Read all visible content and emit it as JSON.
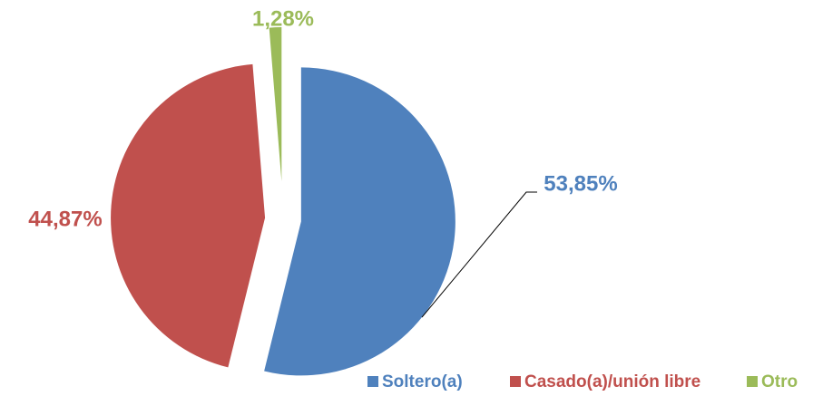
{
  "chart_data": {
    "type": "pie",
    "categories": [
      "Soltero(a)",
      "Casado(a)/unión libre",
      "Otro"
    ],
    "values": [
      53.85,
      44.87,
      1.28
    ],
    "value_labels": [
      "53,85%",
      "44,87%",
      "1,28%"
    ],
    "colors": [
      "#4f81bd",
      "#c0504d",
      "#9bbb59"
    ],
    "legend": "bottom"
  }
}
